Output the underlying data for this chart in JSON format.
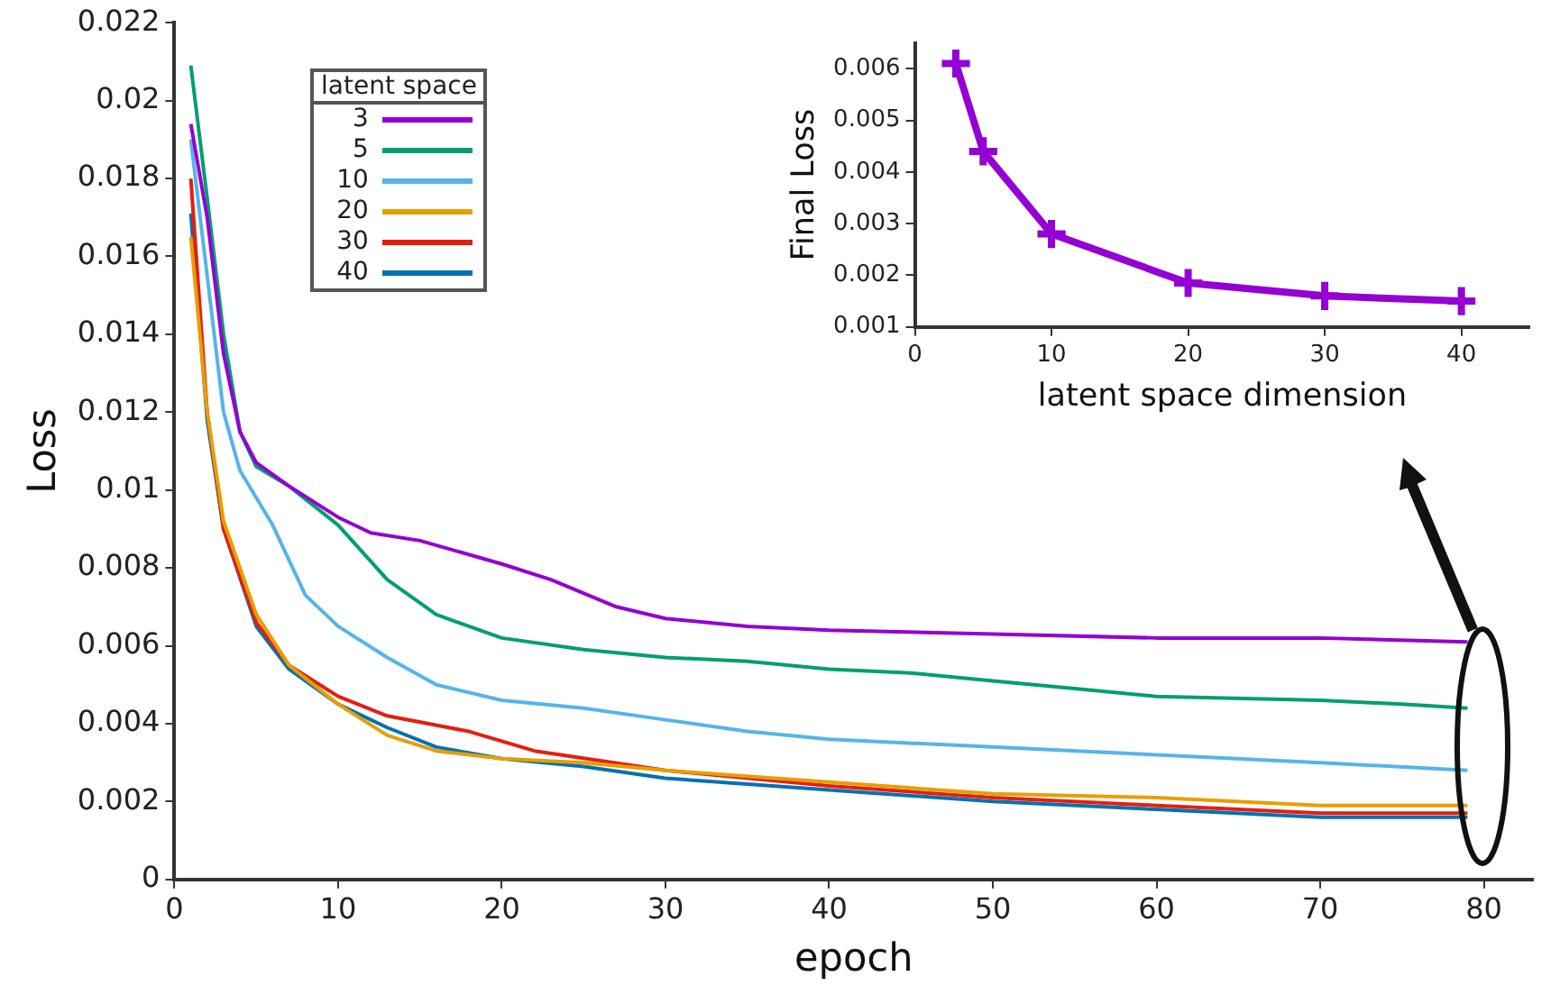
{
  "chart_data": [
    {
      "type": "line",
      "xlabel": "epoch",
      "ylabel": "Loss",
      "xlim": [
        0,
        83
      ],
      "xticks": [
        0,
        10,
        20,
        30,
        40,
        50,
        60,
        70,
        80
      ],
      "ylim": [
        0,
        0.022
      ],
      "yticks": [
        0,
        0.002,
        0.004,
        0.006,
        0.008,
        0.01,
        0.012,
        0.014,
        0.016,
        0.018,
        0.02,
        0.022
      ],
      "legend": "top left",
      "legend_title": "latent space",
      "marker": "none",
      "series": [
        {
          "name": "3",
          "color": "#9400d3",
          "x": [
            1,
            2,
            3,
            4,
            5,
            7,
            10,
            12,
            15,
            20,
            23,
            27,
            30,
            35,
            40,
            50,
            60,
            70,
            79
          ],
          "values": [
            0.0194,
            0.017,
            0.0135,
            0.0115,
            0.0107,
            0.0101,
            0.0093,
            0.0089,
            0.0087,
            0.0081,
            0.0077,
            0.007,
            0.0067,
            0.0065,
            0.0064,
            0.0063,
            0.0062,
            0.0062,
            0.0061
          ]
        },
        {
          "name": "5",
          "color": "#009e73",
          "x": [
            1,
            2,
            3,
            4,
            5,
            7,
            10,
            13,
            16,
            20,
            25,
            30,
            35,
            40,
            45,
            50,
            55,
            60,
            70,
            75,
            79
          ],
          "values": [
            0.0209,
            0.0175,
            0.014,
            0.0115,
            0.0106,
            0.0101,
            0.0091,
            0.0077,
            0.0068,
            0.0062,
            0.0059,
            0.0057,
            0.0056,
            0.0054,
            0.0053,
            0.0051,
            0.0049,
            0.0047,
            0.0046,
            0.0045,
            0.0044
          ]
        },
        {
          "name": "10",
          "color": "#56b4e9",
          "x": [
            1,
            2,
            3,
            4,
            6,
            8,
            10,
            13,
            16,
            20,
            25,
            30,
            35,
            40,
            50,
            60,
            70,
            79
          ],
          "values": [
            0.019,
            0.0155,
            0.012,
            0.0105,
            0.0091,
            0.0073,
            0.0065,
            0.0057,
            0.005,
            0.0046,
            0.0044,
            0.0041,
            0.0038,
            0.0036,
            0.0034,
            0.0032,
            0.003,
            0.0028
          ]
        },
        {
          "name": "20",
          "color": "#e69f00",
          "x": [
            1,
            2,
            3,
            5,
            7,
            10,
            13,
            16,
            20,
            25,
            30,
            40,
            50,
            60,
            70,
            79
          ],
          "values": [
            0.0165,
            0.012,
            0.0092,
            0.0068,
            0.0055,
            0.0045,
            0.0037,
            0.0033,
            0.0031,
            0.003,
            0.0028,
            0.0025,
            0.0022,
            0.0021,
            0.0019,
            0.0019
          ]
        },
        {
          "name": "30",
          "color": "#e51e10",
          "x": [
            1,
            2,
            3,
            5,
            7,
            10,
            13,
            18,
            22,
            30,
            40,
            50,
            60,
            70,
            79
          ],
          "values": [
            0.018,
            0.012,
            0.009,
            0.0066,
            0.0055,
            0.0047,
            0.0042,
            0.0038,
            0.0033,
            0.0028,
            0.0024,
            0.0021,
            0.0019,
            0.0017,
            0.0017
          ]
        },
        {
          "name": "40",
          "color": "#0072b2",
          "x": [
            1,
            2,
            3,
            5,
            7,
            10,
            13,
            16,
            20,
            25,
            30,
            40,
            50,
            60,
            70,
            79
          ],
          "values": [
            0.0171,
            0.0118,
            0.009,
            0.0065,
            0.0054,
            0.0045,
            0.0039,
            0.0034,
            0.0031,
            0.0029,
            0.0026,
            0.0023,
            0.002,
            0.0018,
            0.0016,
            0.0016
          ]
        }
      ]
    },
    {
      "type": "line",
      "xlabel": "latent space dimension",
      "ylabel": "Final Loss",
      "xlim": [
        0,
        45
      ],
      "xticks": [
        0,
        10,
        20,
        30,
        40
      ],
      "ylim": [
        0.001,
        0.0065
      ],
      "yticks": [
        0.001,
        0.002,
        0.003,
        0.004,
        0.005,
        0.006
      ],
      "marker": "cross",
      "series": [
        {
          "color": "#9400d3",
          "x": [
            3,
            5,
            10,
            20,
            30,
            40
          ],
          "values": [
            0.0061,
            0.0044,
            0.0028,
            0.00185,
            0.0016,
            0.0015
          ]
        }
      ]
    }
  ]
}
